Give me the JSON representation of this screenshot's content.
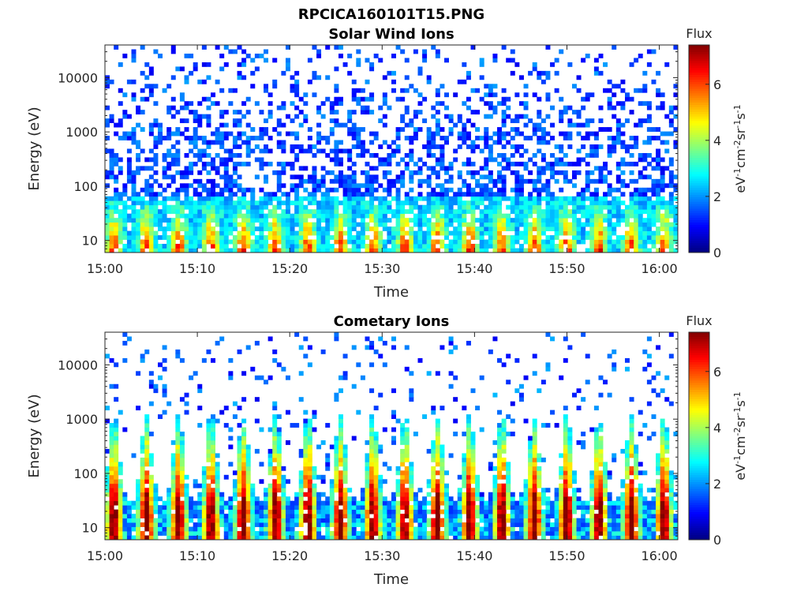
{
  "figure_title": "RPCICA160101T15.PNG",
  "chart_data": [
    {
      "type": "heatmap",
      "title": "Solar Wind Ions",
      "xlabel": "Time",
      "ylabel": "Energy (eV)",
      "x_ticks": [
        "15:00",
        "15:10",
        "15:20",
        "15:30",
        "15:40",
        "15:50",
        "16:00"
      ],
      "x_range_minutes": [
        0,
        62
      ],
      "y_scale": "log",
      "y_ticks": [
        "10",
        "100",
        "1000",
        "10000"
      ],
      "y_range_eV": [
        6,
        40000
      ],
      "colorbar": {
        "label": "Flux",
        "unit": "eV-1cm-2sr-1s-1",
        "ticks": [
          "0",
          "2",
          "4",
          "6"
        ],
        "range": [
          0,
          7.4
        ],
        "colormap": "jet"
      },
      "pulse_period_minutes": 3.5,
      "low_energy_band_eV": [
        8,
        60
      ],
      "peak_flux_approx": 6.5,
      "background_flux_approx": 1.0,
      "grid": false
    },
    {
      "type": "heatmap",
      "title": "Cometary Ions",
      "xlabel": "Time",
      "ylabel": "Energy (eV)",
      "x_ticks": [
        "15:00",
        "15:10",
        "15:20",
        "15:30",
        "15:40",
        "15:50",
        "16:00"
      ],
      "x_range_minutes": [
        0,
        62
      ],
      "y_scale": "log",
      "y_ticks": [
        "10",
        "100",
        "1000",
        "10000"
      ],
      "y_range_eV": [
        6,
        40000
      ],
      "colorbar": {
        "label": "Flux",
        "unit": "eV-1cm-2sr-1s-1",
        "ticks": [
          "0",
          "2",
          "4",
          "6"
        ],
        "range": [
          0,
          7.4
        ],
        "colormap": "jet"
      },
      "pulse_period_minutes": 3.5,
      "low_energy_band_eV": [
        8,
        1000
      ],
      "peak_flux_approx": 7.0,
      "background_flux_approx": 1.0,
      "grid": false
    }
  ]
}
